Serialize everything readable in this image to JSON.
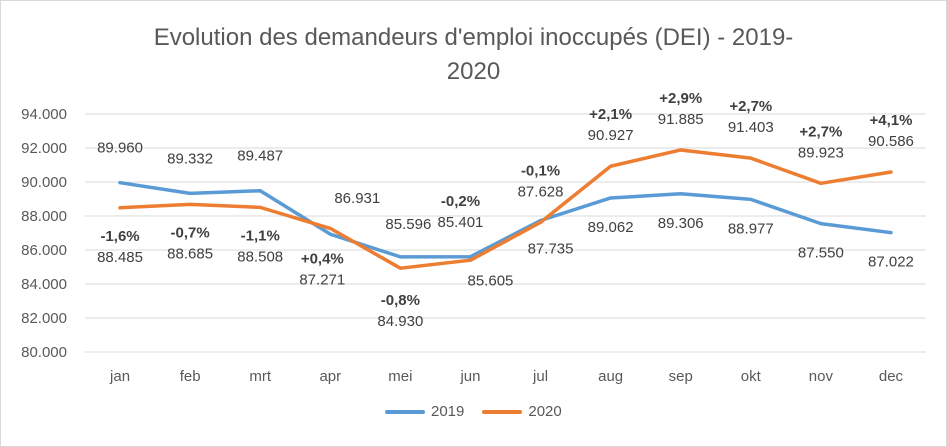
{
  "chart_data": {
    "type": "line",
    "title_line1": "Evolution des demandeurs d'emploi inoccupés (DEI) - 2019-",
    "title_line2": "2020",
    "categories": [
      "jan",
      "feb",
      "mrt",
      "apr",
      "mei",
      "jun",
      "jul",
      "aug",
      "sep",
      "okt",
      "nov",
      "dec"
    ],
    "ylim": [
      80000,
      94000
    ],
    "yticks": [
      80000,
      82000,
      84000,
      86000,
      88000,
      90000,
      92000,
      94000
    ],
    "ytick_labels": [
      "80.000",
      "82.000",
      "84.000",
      "86.000",
      "88.000",
      "90.000",
      "92.000",
      "94.000"
    ],
    "grid": true,
    "legend_position": "bottom",
    "series": [
      {
        "name": "2019",
        "color": "#5b9bd5",
        "values": [
          89960,
          89332,
          89487,
          86931,
          85596,
          85605,
          87735,
          89062,
          89306,
          88977,
          87550,
          87022
        ],
        "labels": [
          "89.960",
          "89.332",
          "89.487",
          "86.931",
          "85.596",
          "85.605",
          "87.735",
          "89.062",
          "89.306",
          "88.977",
          "87.550",
          "87.022"
        ]
      },
      {
        "name": "2020",
        "color": "#ed7d31",
        "values": [
          88485,
          88685,
          88508,
          87271,
          84930,
          85401,
          87628,
          90927,
          91885,
          91403,
          89923,
          90586
        ],
        "labels": [
          "88.485",
          "88.685",
          "88.508",
          "87.271",
          "84.930",
          "85.401",
          "87.628",
          "90.927",
          "91.885",
          "91.403",
          "89.923",
          "90.586"
        ],
        "change_labels": [
          "-1,6%",
          "-0,7%",
          "-1,1%",
          "+0,4%",
          "-0,8%",
          "-0,2%",
          "-0,1%",
          "+2,1%",
          "+2,9%",
          "+2,7%",
          "+2,7%",
          "+4,1%"
        ]
      }
    ]
  }
}
